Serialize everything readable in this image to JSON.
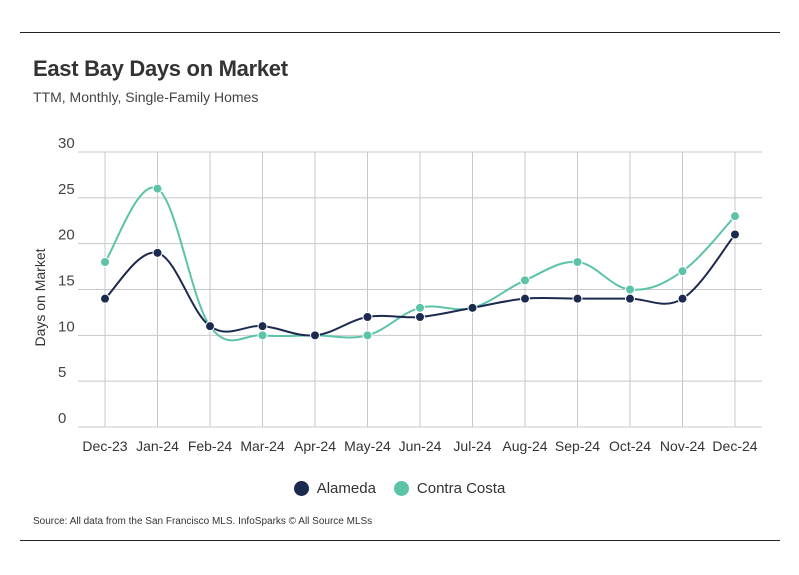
{
  "header": {
    "title": "East Bay Days on Market",
    "subtitle": "TTM, Monthly, Single-Family Homes"
  },
  "footer": {
    "source": "Source:  All data from the San Francisco MLS. InfoSparks © All Source MLSs"
  },
  "colors": {
    "alameda": "#1b2a4e",
    "contra_costa": "#5cc3a8",
    "grid": "#c8c8c8",
    "text": "#333333"
  },
  "chart_data": {
    "type": "line",
    "title": "East Bay Days on Market",
    "subtitle": "TTM, Monthly, Single-Family Homes",
    "xlabel": "",
    "ylabel": "Days on Market",
    "ylim": [
      0,
      30
    ],
    "yticks": [
      0,
      5,
      10,
      15,
      20,
      25,
      30
    ],
    "grid": true,
    "legend_position": "bottom-center",
    "categories": [
      "Dec-23",
      "Jan-24",
      "Feb-24",
      "Mar-24",
      "Apr-24",
      "May-24",
      "Jun-24",
      "Jul-24",
      "Aug-24",
      "Sep-24",
      "Oct-24",
      "Nov-24",
      "Dec-24"
    ],
    "series": [
      {
        "name": "Alameda",
        "color": "#1b2a4e",
        "values": [
          14,
          19,
          11,
          11,
          10,
          12,
          12,
          13,
          14,
          14,
          14,
          14,
          21
        ]
      },
      {
        "name": "Contra Costa",
        "color": "#5cc3a8",
        "values": [
          18,
          26,
          11,
          10,
          10,
          10,
          13,
          13,
          16,
          18,
          15,
          17,
          23
        ]
      }
    ]
  }
}
